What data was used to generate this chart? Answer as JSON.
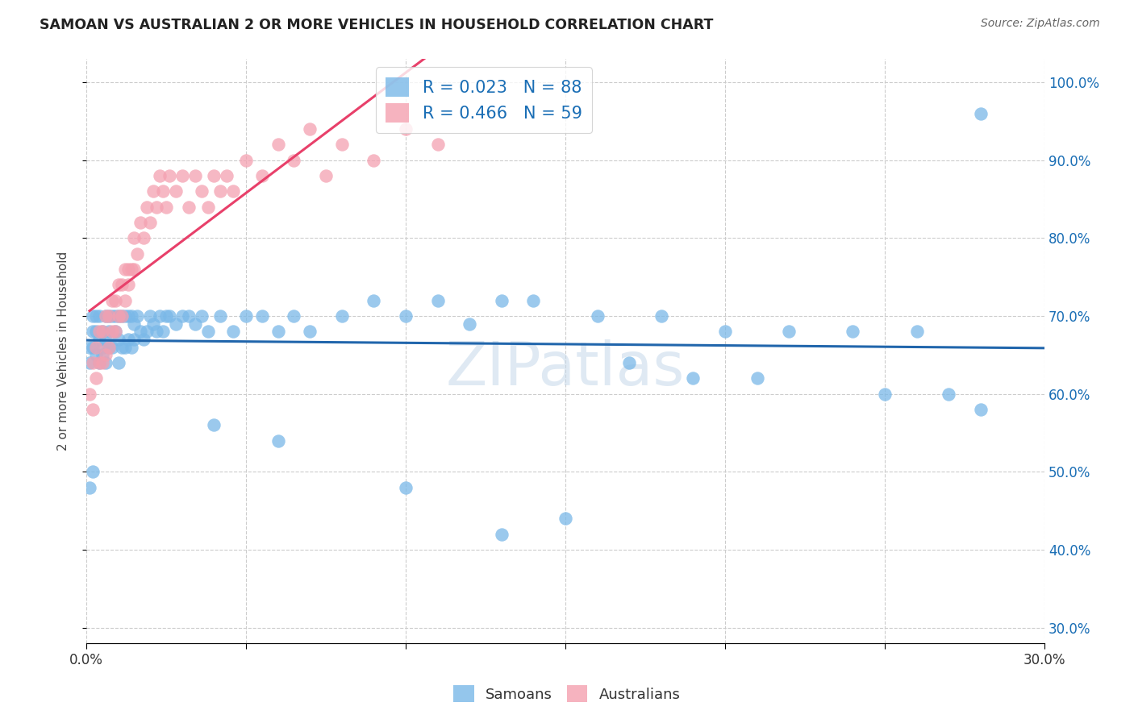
{
  "title": "SAMOAN VS AUSTRALIAN 2 OR MORE VEHICLES IN HOUSEHOLD CORRELATION CHART",
  "source": "Source: ZipAtlas.com",
  "ylabel": "2 or more Vehicles in Household",
  "xlim": [
    0.0,
    0.3
  ],
  "ylim": [
    0.28,
    1.03
  ],
  "xtick_positions": [
    0.0,
    0.05,
    0.1,
    0.15,
    0.2,
    0.25,
    0.3
  ],
  "xtick_labels": [
    "0.0%",
    "",
    "",
    "",
    "",
    "",
    "30.0%"
  ],
  "ytick_positions": [
    0.3,
    0.4,
    0.5,
    0.6,
    0.7,
    0.8,
    0.9,
    1.0
  ],
  "ytick_labels": [
    "30.0%",
    "40.0%",
    "50.0%",
    "60.0%",
    "70.0%",
    "80.0%",
    "90.0%",
    "100.0%"
  ],
  "samoans_color": "#7ab8e8",
  "australians_color": "#f4a0b0",
  "samoans_line_color": "#2166ac",
  "australians_line_color": "#e8406a",
  "australians_dash_color": "#e8a0b8",
  "samoans_R": 0.023,
  "samoans_N": 88,
  "australians_R": 0.466,
  "australians_N": 59,
  "watermark": "ZIPatlas",
  "legend_labels": [
    "Samoans",
    "Australians"
  ],
  "legend_R_N_color": "#1a6eb5",
  "samoans_x": [
    0.001,
    0.001,
    0.002,
    0.002,
    0.002,
    0.003,
    0.003,
    0.003,
    0.004,
    0.004,
    0.004,
    0.005,
    0.005,
    0.005,
    0.006,
    0.006,
    0.006,
    0.007,
    0.007,
    0.007,
    0.008,
    0.008,
    0.009,
    0.009,
    0.01,
    0.01,
    0.01,
    0.011,
    0.011,
    0.012,
    0.012,
    0.013,
    0.013,
    0.014,
    0.014,
    0.015,
    0.015,
    0.016,
    0.017,
    0.018,
    0.019,
    0.02,
    0.021,
    0.022,
    0.023,
    0.024,
    0.025,
    0.026,
    0.028,
    0.03,
    0.032,
    0.034,
    0.036,
    0.038,
    0.042,
    0.046,
    0.05,
    0.055,
    0.06,
    0.065,
    0.07,
    0.08,
    0.09,
    0.1,
    0.11,
    0.12,
    0.13,
    0.14,
    0.16,
    0.18,
    0.2,
    0.22,
    0.24,
    0.26,
    0.17,
    0.19,
    0.21,
    0.25,
    0.27,
    0.28,
    0.001,
    0.002,
    0.15,
    0.13,
    0.1,
    0.06,
    0.04,
    0.28
  ],
  "samoans_y": [
    0.66,
    0.64,
    0.68,
    0.7,
    0.66,
    0.65,
    0.68,
    0.7,
    0.64,
    0.67,
    0.7,
    0.65,
    0.68,
    0.66,
    0.64,
    0.67,
    0.7,
    0.66,
    0.68,
    0.7,
    0.66,
    0.7,
    0.68,
    0.7,
    0.64,
    0.67,
    0.7,
    0.66,
    0.7,
    0.66,
    0.7,
    0.67,
    0.7,
    0.66,
    0.7,
    0.67,
    0.69,
    0.7,
    0.68,
    0.67,
    0.68,
    0.7,
    0.69,
    0.68,
    0.7,
    0.68,
    0.7,
    0.7,
    0.69,
    0.7,
    0.7,
    0.69,
    0.7,
    0.68,
    0.7,
    0.68,
    0.7,
    0.7,
    0.68,
    0.7,
    0.68,
    0.7,
    0.72,
    0.7,
    0.72,
    0.69,
    0.72,
    0.72,
    0.7,
    0.7,
    0.68,
    0.68,
    0.68,
    0.68,
    0.64,
    0.62,
    0.62,
    0.6,
    0.6,
    0.58,
    0.48,
    0.5,
    0.44,
    0.42,
    0.48,
    0.54,
    0.56,
    0.96
  ],
  "australians_x": [
    0.001,
    0.002,
    0.002,
    0.003,
    0.003,
    0.004,
    0.004,
    0.005,
    0.005,
    0.006,
    0.006,
    0.007,
    0.007,
    0.008,
    0.008,
    0.009,
    0.009,
    0.01,
    0.01,
    0.011,
    0.011,
    0.012,
    0.012,
    0.013,
    0.013,
    0.014,
    0.015,
    0.015,
    0.016,
    0.017,
    0.018,
    0.019,
    0.02,
    0.021,
    0.022,
    0.023,
    0.024,
    0.025,
    0.026,
    0.028,
    0.03,
    0.032,
    0.034,
    0.036,
    0.038,
    0.04,
    0.042,
    0.044,
    0.046,
    0.05,
    0.055,
    0.06,
    0.065,
    0.07,
    0.075,
    0.08,
    0.09,
    0.1,
    0.11
  ],
  "australians_y": [
    0.6,
    0.58,
    0.64,
    0.62,
    0.66,
    0.64,
    0.68,
    0.64,
    0.68,
    0.65,
    0.7,
    0.66,
    0.7,
    0.68,
    0.72,
    0.68,
    0.72,
    0.7,
    0.74,
    0.7,
    0.74,
    0.72,
    0.76,
    0.74,
    0.76,
    0.76,
    0.76,
    0.8,
    0.78,
    0.82,
    0.8,
    0.84,
    0.82,
    0.86,
    0.84,
    0.88,
    0.86,
    0.84,
    0.88,
    0.86,
    0.88,
    0.84,
    0.88,
    0.86,
    0.84,
    0.88,
    0.86,
    0.88,
    0.86,
    0.9,
    0.88,
    0.92,
    0.9,
    0.94,
    0.88,
    0.92,
    0.9,
    0.94,
    0.92
  ]
}
